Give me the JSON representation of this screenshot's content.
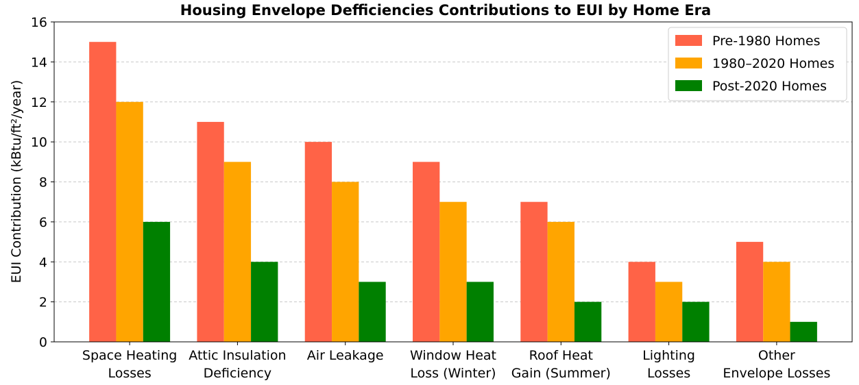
{
  "chart_data": {
    "type": "bar",
    "title": "Housing Envelope Defficiencies Contributions to EUI by Home Era",
    "xlabel": "",
    "ylabel": "EUI Contribution (kBtu/ft²/year)",
    "ylim": [
      0,
      16
    ],
    "yticks": [
      "0",
      "2",
      "4",
      "6",
      "8",
      "10",
      "12",
      "14",
      "16"
    ],
    "grid": "horizontal dashed",
    "legend_position": "top-right",
    "categories": [
      [
        "Space Heating",
        "Losses"
      ],
      [
        "Attic Insulation",
        "Deficiency"
      ],
      [
        "Air Leakage"
      ],
      [
        "Window Heat",
        "Loss (Winter)"
      ],
      [
        "Roof Heat",
        "Gain (Summer)"
      ],
      [
        "Lighting",
        "Losses"
      ],
      [
        "Other",
        "Envelope Losses"
      ]
    ],
    "series": [
      {
        "name": "Pre-1980 Homes",
        "color": "#ff6347",
        "values": [
          15,
          11,
          10,
          9,
          7,
          4,
          5
        ]
      },
      {
        "name": "1980–2020 Homes",
        "color": "#ffa500",
        "values": [
          12,
          9,
          8,
          7,
          6,
          3,
          4
        ]
      },
      {
        "name": "Post-2020 Homes",
        "color": "#008000",
        "values": [
          6,
          4,
          3,
          3,
          2,
          2,
          1
        ]
      }
    ]
  }
}
